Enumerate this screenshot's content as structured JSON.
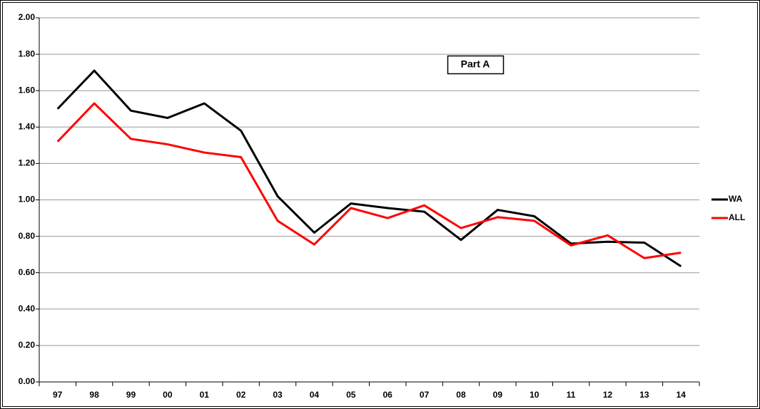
{
  "chart_data": {
    "type": "line",
    "annotation": "Part A",
    "categories": [
      "97",
      "98",
      "99",
      "00",
      "01",
      "02",
      "03",
      "04",
      "05",
      "06",
      "07",
      "08",
      "09",
      "10",
      "11",
      "12",
      "13",
      "14"
    ],
    "series": [
      {
        "name": "WA",
        "color": "#000000",
        "values": [
          1.5,
          1.71,
          1.49,
          1.45,
          1.53,
          1.38,
          1.02,
          0.82,
          0.98,
          0.955,
          0.935,
          0.78,
          0.945,
          0.91,
          0.76,
          0.77,
          0.765,
          0.635
        ]
      },
      {
        "name": "ALL",
        "color": "#ff0000",
        "values": [
          1.32,
          1.53,
          1.335,
          1.305,
          1.26,
          1.235,
          0.885,
          0.755,
          0.955,
          0.9,
          0.97,
          0.845,
          0.905,
          0.885,
          0.75,
          0.805,
          0.68,
          0.71
        ]
      }
    ],
    "ylim": [
      0,
      2
    ],
    "yticks": [
      {
        "value": 0,
        "label": "0.00"
      },
      {
        "value": 0.2,
        "label": "0.20"
      },
      {
        "value": 0.4,
        "label": "0.40"
      },
      {
        "value": 0.6,
        "label": "0.60"
      },
      {
        "value": 0.8,
        "label": "0.80"
      },
      {
        "value": 1,
        "label": "1.00"
      },
      {
        "value": 1.2,
        "label": "1.20"
      },
      {
        "value": 1.4,
        "label": "1.40"
      },
      {
        "value": 1.6,
        "label": "1.60"
      },
      {
        "value": 1.8,
        "label": "1.80"
      },
      {
        "value": 2,
        "label": "2.00"
      }
    ],
    "grid": true,
    "legend": "right"
  }
}
